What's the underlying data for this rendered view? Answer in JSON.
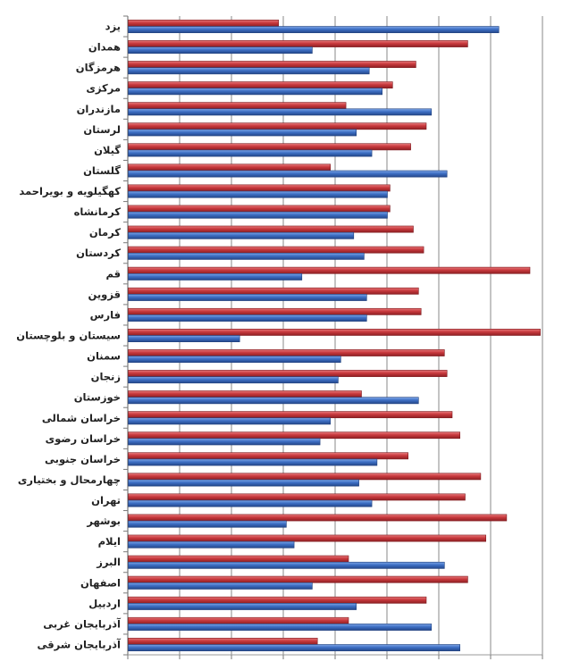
{
  "chart_data": {
    "type": "bar",
    "orientation": "horizontal",
    "title": "",
    "xlabel": "",
    "ylabel": "",
    "xlim": [
      0,
      8
    ],
    "grid": true,
    "legend": "none",
    "tick_labels_shown": false,
    "colors": {
      "series_red": "#c8393d",
      "series_blue": "#3d6fc4"
    },
    "categories": [
      "یزد",
      "همدان",
      "هرمزگان",
      "مرکزی",
      "مازندران",
      "لرستان",
      "گیلان",
      "گلستان",
      "کهگیلویه و بویراحمد",
      "کرمانشاه",
      "کرمان",
      "کردستان",
      "قم",
      "قزوین",
      "فارس",
      "سیستان و بلوچستان",
      "سمنان",
      "زنجان",
      "خوزستان",
      "خراسان شمالی",
      "خراسان رضوی",
      "خراسان جنوبی",
      "چهارمحال و بختیاری",
      "تهران",
      "بوشهر",
      "ایلام",
      "البرز",
      "اصفهان",
      "اردبیل",
      "آذربایجان غربی",
      "آذربایجان شرقی"
    ],
    "series": [
      {
        "color": "#c8393d",
        "values": [
          2.9,
          6.55,
          5.55,
          5.1,
          4.2,
          5.75,
          5.45,
          3.9,
          5.05,
          5.05,
          5.5,
          5.7,
          7.75,
          5.6,
          5.65,
          7.95,
          6.1,
          6.15,
          4.5,
          6.25,
          6.4,
          5.4,
          6.8,
          6.5,
          7.3,
          6.9,
          4.25,
          6.55,
          5.75,
          4.25,
          3.65
        ]
      },
      {
        "color": "#3d6fc4",
        "values": [
          7.15,
          3.55,
          4.65,
          4.9,
          5.85,
          4.4,
          4.7,
          6.15,
          5.0,
          5.0,
          4.35,
          4.55,
          3.35,
          4.6,
          4.6,
          2.15,
          4.1,
          4.05,
          5.6,
          3.9,
          3.7,
          4.8,
          4.45,
          4.7,
          3.05,
          3.2,
          6.1,
          3.55,
          4.4,
          5.85,
          6.4
        ]
      }
    ]
  }
}
